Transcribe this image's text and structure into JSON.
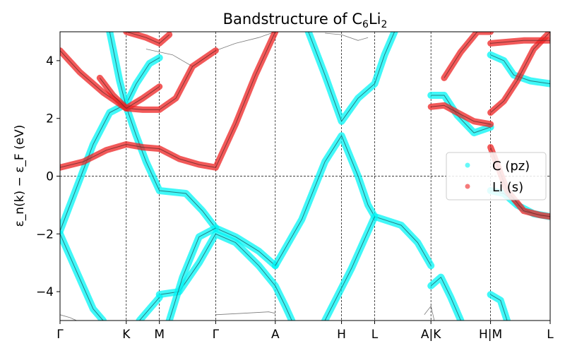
{
  "chart_data": {
    "type": "scatter",
    "title": "Bandstructure of C",
    "title_sub1": "6",
    "title_mid": "Li",
    "title_sub2": "2",
    "ylabel": "ε_n(k) − ε_F (eV)",
    "ylim": [
      -5,
      5
    ],
    "yticks": [
      -4,
      -2,
      0,
      2,
      4
    ],
    "xlim": [
      0,
      14.8
    ],
    "grid": "dashed vertical at high-symmetry points, dashed horizontal at Fermi level",
    "legend_position": "right",
    "kpoints": [
      {
        "label": "Γ",
        "x": 0
      },
      {
        "label": "K",
        "x": 2.0
      },
      {
        "label": "M",
        "x": 3.0
      },
      {
        "label": "Γ",
        "x": 4.7
      },
      {
        "label": "A",
        "x": 6.5
      },
      {
        "label": "H",
        "x": 8.5
      },
      {
        "label": "L",
        "x": 9.5
      },
      {
        "label": "A|K",
        "x": 11.2
      },
      {
        "label": "H|M",
        "x": 13.0
      },
      {
        "label": "L",
        "x": 14.8
      }
    ],
    "series": [
      {
        "name": "C (pz)",
        "color": "#00f5f5",
        "bands": [
          [
            [
              0,
              -1.9
            ],
            [
              0.5,
              -0.4
            ],
            [
              1.0,
              1.1
            ],
            [
              1.5,
              2.2
            ],
            [
              2.0,
              2.5
            ],
            [
              2.3,
              3.2
            ],
            [
              2.7,
              3.9
            ],
            [
              3.0,
              4.1
            ]
          ],
          [
            [
              0,
              -2.0
            ],
            [
              0.5,
              -3.3
            ],
            [
              1.0,
              -4.6
            ],
            [
              1.3,
              -5.0
            ]
          ],
          [
            [
              1.5,
              5.0
            ],
            [
              1.8,
              3.3
            ],
            [
              2.0,
              2.4
            ],
            [
              2.3,
              1.4
            ],
            [
              2.6,
              0.5
            ],
            [
              3.0,
              -0.5
            ],
            [
              3.8,
              -0.6
            ],
            [
              4.3,
              -1.2
            ],
            [
              4.7,
              -1.8
            ],
            [
              5.3,
              -2.1
            ],
            [
              6.0,
              -2.6
            ],
            [
              6.5,
              -3.1
            ]
          ],
          [
            [
              3.0,
              -4.1
            ],
            [
              3.6,
              -4.0
            ],
            [
              4.2,
              -3.0
            ],
            [
              4.7,
              -2.0
            ],
            [
              5.3,
              -2.3
            ],
            [
              6.0,
              -3.1
            ],
            [
              6.5,
              -3.8
            ],
            [
              6.8,
              -4.5
            ],
            [
              7.0,
              -5.0
            ]
          ],
          [
            [
              2.4,
              -5.0
            ],
            [
              2.7,
              -4.6
            ],
            [
              3.0,
              -4.2
            ]
          ],
          [
            [
              3.3,
              -5.0
            ],
            [
              3.7,
              -3.5
            ],
            [
              4.2,
              -2.1
            ],
            [
              4.7,
              -1.8
            ]
          ],
          [
            [
              6.5,
              -3.1
            ],
            [
              7.3,
              -1.5
            ],
            [
              8.0,
              0.5
            ],
            [
              8.5,
              1.4
            ],
            [
              9.0,
              0.0
            ],
            [
              9.3,
              -1.0
            ],
            [
              9.5,
              -1.4
            ],
            [
              10.3,
              -1.7
            ],
            [
              10.8,
              -2.3
            ],
            [
              11.2,
              -3.1
            ]
          ],
          [
            [
              7.5,
              5.0
            ],
            [
              8.0,
              3.5
            ],
            [
              8.5,
              1.9
            ],
            [
              9.0,
              2.7
            ],
            [
              9.5,
              3.2
            ],
            [
              9.8,
              4.2
            ],
            [
              10.1,
              5.0
            ]
          ],
          [
            [
              8.0,
              -5.0
            ],
            [
              8.8,
              -3.2
            ],
            [
              9.5,
              -1.4
            ]
          ],
          [
            [
              11.2,
              2.8
            ],
            [
              11.6,
              2.8
            ],
            [
              12.0,
              2.1
            ],
            [
              12.5,
              1.5
            ],
            [
              13.0,
              1.7
            ]
          ],
          [
            [
              11.2,
              -3.8
            ],
            [
              11.5,
              -3.5
            ],
            [
              11.8,
              -4.2
            ],
            [
              12.1,
              -5.0
            ]
          ],
          [
            [
              13.0,
              4.2
            ],
            [
              13.4,
              4.0
            ],
            [
              13.7,
              3.5
            ],
            [
              14.2,
              3.3
            ],
            [
              14.8,
              3.2
            ]
          ],
          [
            [
              13.0,
              -0.5
            ],
            [
              13.4,
              -0.6
            ],
            [
              13.8,
              -1.0
            ],
            [
              14.3,
              -1.3
            ],
            [
              14.8,
              -1.4
            ]
          ],
          [
            [
              13.0,
              -4.1
            ],
            [
              13.3,
              -4.3
            ],
            [
              13.5,
              -5.0
            ]
          ]
        ]
      },
      {
        "name": "Li (s)",
        "color": "#ee2222",
        "bands": [
          [
            [
              0,
              0.3
            ],
            [
              0.7,
              0.5
            ],
            [
              1.4,
              0.9
            ],
            [
              2.0,
              1.1
            ],
            [
              2.5,
              1.0
            ],
            [
              3.0,
              0.95
            ],
            [
              3.6,
              0.6
            ],
            [
              4.2,
              0.4
            ],
            [
              4.7,
              0.3
            ],
            [
              5.3,
              1.8
            ],
            [
              5.9,
              3.5
            ],
            [
              6.5,
              5.0
            ]
          ],
          [
            [
              0,
              4.35
            ],
            [
              0.6,
              3.6
            ],
            [
              1.3,
              2.9
            ],
            [
              2.0,
              2.35
            ],
            [
              2.5,
              2.3
            ],
            [
              3.0,
              2.3
            ],
            [
              3.5,
              2.7
            ],
            [
              4.0,
              3.8
            ],
            [
              4.7,
              4.35
            ]
          ],
          [
            [
              1.2,
              3.4
            ],
            [
              1.6,
              2.8
            ],
            [
              2.0,
              2.35
            ],
            [
              2.5,
              2.7
            ],
            [
              3.0,
              3.1
            ]
          ],
          [
            [
              2.0,
              5.0
            ],
            [
              2.6,
              4.8
            ],
            [
              3.0,
              4.6
            ],
            [
              3.3,
              4.9
            ]
          ],
          [
            [
              11.2,
              2.4
            ],
            [
              11.6,
              2.45
            ],
            [
              12.0,
              2.2
            ],
            [
              12.5,
              1.9
            ],
            [
              13.0,
              1.8
            ]
          ],
          [
            [
              11.6,
              3.4
            ],
            [
              12.1,
              4.3
            ],
            [
              12.6,
              5.0
            ],
            [
              13.0,
              5.0
            ]
          ],
          [
            [
              13.0,
              2.2
            ],
            [
              13.4,
              2.6
            ],
            [
              13.8,
              3.3
            ],
            [
              14.3,
              4.4
            ],
            [
              14.8,
              5.0
            ]
          ],
          [
            [
              13.0,
              1.0
            ],
            [
              13.5,
              -0.5
            ],
            [
              14.0,
              -1.2
            ],
            [
              14.5,
              -1.35
            ],
            [
              14.8,
              -1.4
            ]
          ],
          [
            [
              13.0,
              4.6
            ],
            [
              14.0,
              4.7
            ],
            [
              14.8,
              4.7
            ]
          ]
        ]
      }
    ],
    "background_bands": [
      [
        [
          4.7,
          4.35
        ],
        [
          5.3,
          4.6
        ],
        [
          6.0,
          4.8
        ],
        [
          6.5,
          5.0
        ]
      ],
      [
        [
          2.6,
          4.4
        ],
        [
          3.4,
          4.2
        ],
        [
          4.0,
          3.8
        ],
        [
          4.7,
          4.35
        ]
      ],
      [
        [
          4.7,
          -4.8
        ],
        [
          5.5,
          -4.75
        ],
        [
          6.3,
          -4.7
        ],
        [
          6.5,
          -4.75
        ]
      ],
      [
        [
          0,
          -4.8
        ],
        [
          0.3,
          -4.9
        ],
        [
          0.5,
          -5.0
        ]
      ],
      [
        [
          11.0,
          -4.8
        ],
        [
          11.2,
          -4.5
        ],
        [
          11.3,
          -5.0
        ]
      ],
      [
        [
          8.0,
          4.95
        ],
        [
          8.5,
          4.9
        ],
        [
          9.0,
          4.7
        ],
        [
          9.3,
          4.8
        ]
      ]
    ]
  }
}
